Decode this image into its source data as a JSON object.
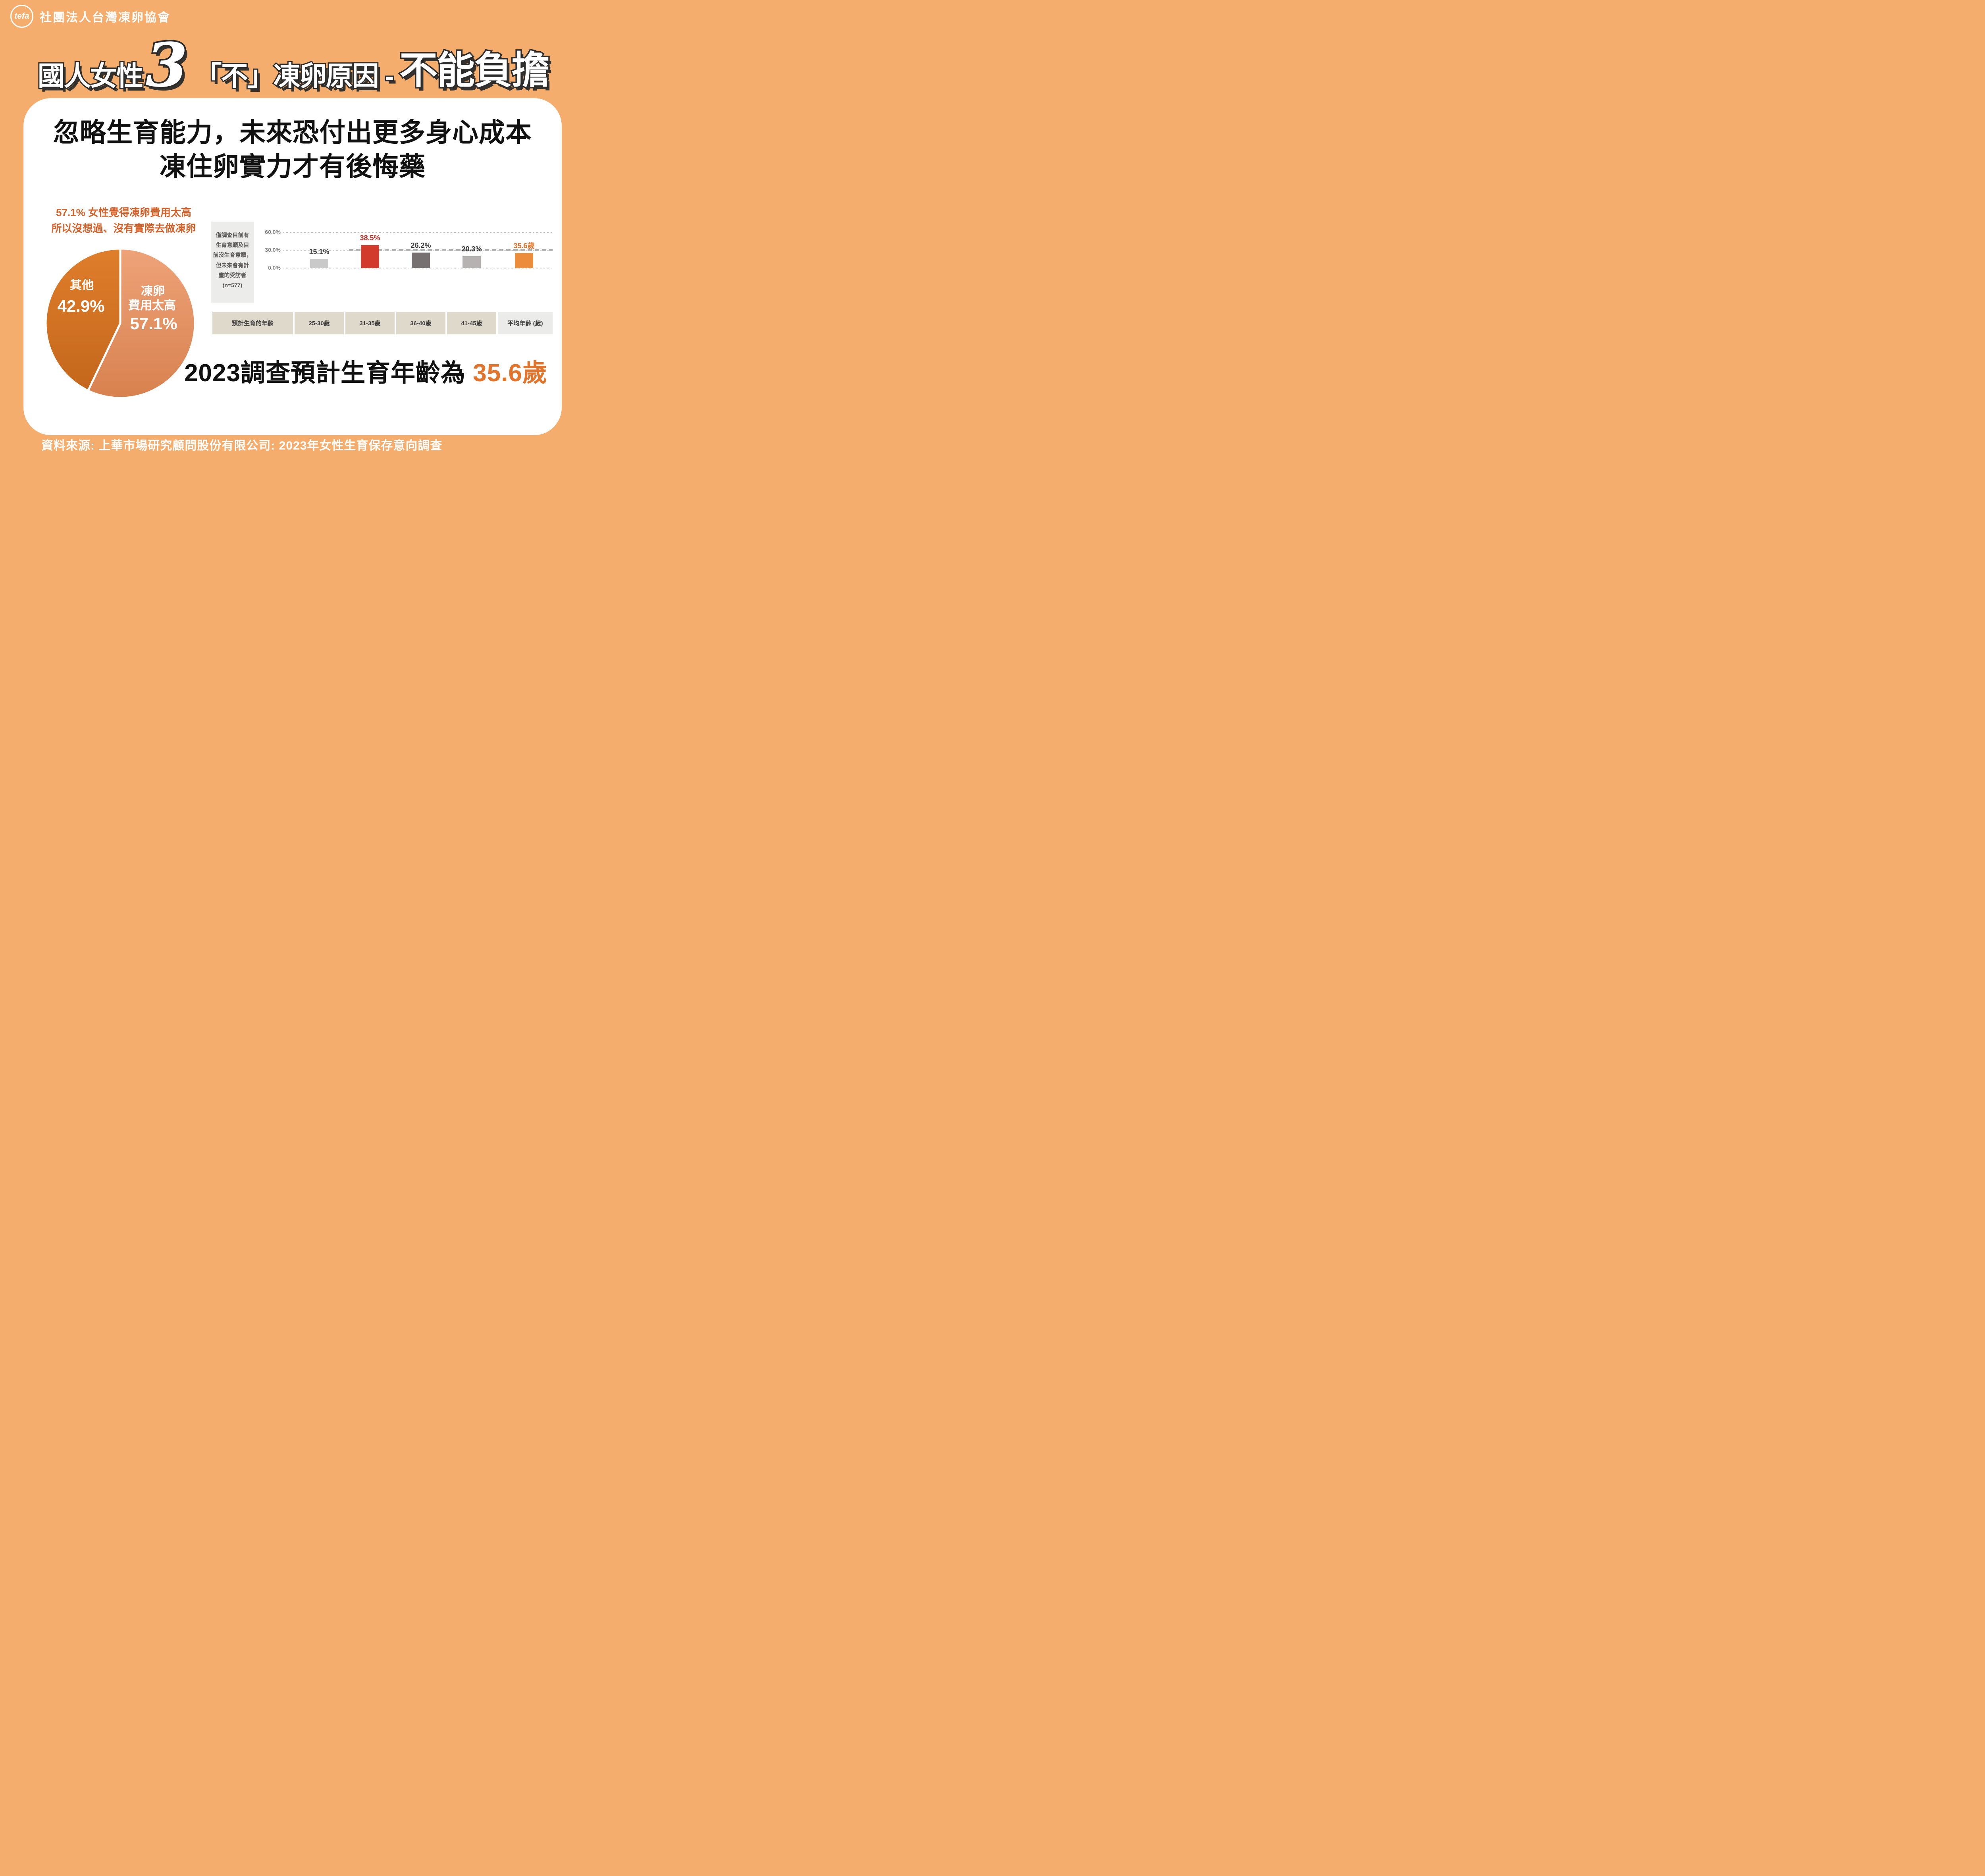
{
  "colors": {
    "background": "#F4AD6C",
    "card": "#FFFFFF",
    "title_fill": "#FFFFFF",
    "title_outline": "#2D2D2D",
    "heading_text": "#111111",
    "callout_orange": "#D4622A",
    "note_bg": "#ECECEA",
    "note_text": "#5B5857",
    "axis_text": "#7F7F7F",
    "gridline": "#BEBEBE",
    "gridline_bold": "#9B9B9B",
    "table_cell_bg": "#DED9CB",
    "table_cell_last_bg": "#EBEBE9",
    "table_text": "#3E3E3E",
    "statement_highlight": "#E2752D",
    "footer_text": "#FFFFFF"
  },
  "header": {
    "logo_text": "tefa",
    "org_name": "社團法人台灣凍卵協會"
  },
  "title": {
    "part1": "國人女性",
    "number": "3",
    "part2": "「不」凍卵原因 -",
    "part3": "不能負擔"
  },
  "card": {
    "heading_line1": "忽略生育能力，未來恐付出更多身心成本",
    "heading_line2": "凍住卵實力才有後悔藥",
    "pie_callout_line1": "57.1% 女性覺得凍卵費用太高",
    "pie_callout_line2": "所以沒想過、沒有實際去做凍卵",
    "survey_note_lines": [
      "僅調查目前有",
      "生育意願及目",
      "前沒生育意願，",
      "但未來會有計",
      "畫的受訪者",
      "(n=577)"
    ],
    "statement_prefix": "2023調查預計生育年齡為 ",
    "statement_value": "35.6歲"
  },
  "chart_data": [
    {
      "type": "pie",
      "title": "57.1% 女性覺得凍卵費用太高 所以沒想過、沒有實際去做凍卵",
      "slices": [
        {
          "label": "凍卵費用太高",
          "value": 57.1,
          "value_label": "57.1%",
          "label_lines": [
            "凍卵",
            "費用太高"
          ],
          "color_top": "#EEA378",
          "color_bottom": "#D8814F"
        },
        {
          "label": "其他",
          "value": 42.9,
          "value_label": "42.9%",
          "label_lines": [
            "其他"
          ],
          "color_top": "#DF7E2B",
          "color_bottom": "#C4671C"
        }
      ]
    },
    {
      "type": "bar",
      "row_header": "預計生育的年齡",
      "categories": [
        "25-30歲",
        "31-35歲",
        "36-40歲",
        "41-45歲",
        "平均年齡 (歲)"
      ],
      "values": [
        15.1,
        38.5,
        26.2,
        20.3,
        35.6
      ],
      "yticks": [
        "60.0%",
        "30.0%",
        "0.0%"
      ],
      "ylim": [
        0,
        60
      ],
      "grid": "dashed",
      "note": "僅調查目前有生育意願及目前沒生育意願，但未來會有計畫的受訪者 (n=577)",
      "bars": [
        {
          "category": "25-30歲",
          "value": 15.1,
          "label": "15.1%",
          "color": "#C9C9C9",
          "label_color": "#3E3E3E",
          "render_pct": 15.1
        },
        {
          "category": "31-35歲",
          "value": 38.5,
          "label": "38.5%",
          "color": "#D23A2B",
          "label_color": "#C43026",
          "render_pct": 38.5
        },
        {
          "category": "36-40歲",
          "value": 26.2,
          "label": "26.2%",
          "color": "#767070",
          "label_color": "#3E3E3E",
          "render_pct": 26.2
        },
        {
          "category": "41-45歲",
          "value": 20.3,
          "label": "20.3%",
          "color": "#B5B2B1",
          "label_color": "#3E3E3E",
          "render_pct": 20.3
        },
        {
          "category": "平均年齡 (歲)",
          "value": 35.6,
          "unit": "歲",
          "label": "35.6歲",
          "color": "#EC8D3C",
          "label_color": "#E0742C",
          "render_pct": 25.3
        }
      ]
    }
  ],
  "footer": {
    "source": "資料來源: 上華市場研究顧問股份有限公司: 2023年女性生育保存意向調查"
  }
}
